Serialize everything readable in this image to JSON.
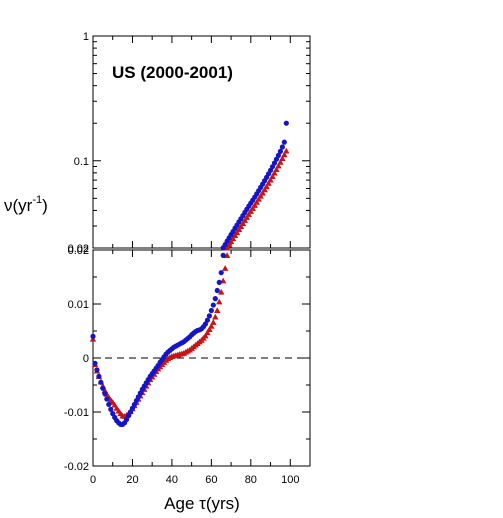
{
  "chart_data": [
    {
      "panel": "top",
      "type": "scatter",
      "title": "US (2000-2001)",
      "ylabel": "ν(yr",
      "ylabel_sup": "-1",
      "ylabel_close": ")",
      "yscale": "log",
      "ylim": [
        0.02,
        1
      ],
      "xlim": [
        0,
        110
      ],
      "ytick_labels": [
        "1",
        "0.1",
        "0.02"
      ],
      "ytick_values": [
        1,
        0.1,
        0.02
      ],
      "series": [
        {
          "marker": "circle",
          "color": "#1515c8",
          "x": [
            66,
            67,
            68,
            69,
            70,
            71,
            72,
            73,
            74,
            75,
            76,
            77,
            78,
            79,
            80,
            81,
            82,
            83,
            84,
            85,
            86,
            87,
            88,
            89,
            90,
            91,
            92,
            93,
            94,
            95,
            96,
            97,
            98
          ],
          "y": [
            0.0201,
            0.0213,
            0.0227,
            0.0241,
            0.0256,
            0.0271,
            0.0288,
            0.0305,
            0.0324,
            0.0343,
            0.0364,
            0.0386,
            0.0409,
            0.0433,
            0.0458,
            0.0484,
            0.0512,
            0.0543,
            0.0576,
            0.0612,
            0.065,
            0.0692,
            0.0737,
            0.0786,
            0.0839,
            0.0897,
            0.096,
            0.103,
            0.1105,
            0.119,
            0.129,
            0.141,
            0.2
          ]
        },
        {
          "marker": "triangle",
          "color": "#c81414",
          "x": [
            68,
            69,
            70,
            71,
            72,
            73,
            74,
            75,
            76,
            77,
            78,
            79,
            80,
            81,
            82,
            83,
            84,
            85,
            86,
            87,
            88,
            89,
            90,
            91,
            92,
            93,
            94,
            95,
            96,
            97,
            98
          ],
          "y": [
            0.02,
            0.0212,
            0.0225,
            0.0238,
            0.0252,
            0.0266,
            0.0282,
            0.0298,
            0.0315,
            0.0333,
            0.0352,
            0.0372,
            0.0394,
            0.0416,
            0.044,
            0.0466,
            0.0493,
            0.0522,
            0.0553,
            0.0586,
            0.0622,
            0.0661,
            0.0703,
            0.0749,
            0.0799,
            0.0853,
            0.0911,
            0.0975,
            0.1045,
            0.112,
            0.12
          ]
        }
      ]
    },
    {
      "panel": "bottom",
      "type": "scatter",
      "xlabel": "Age τ(yrs)",
      "ylim": [
        -0.02,
        0.02
      ],
      "xlim": [
        0,
        110
      ],
      "ytick_labels": [
        "0.02",
        "0.01",
        "0",
        "-0.01",
        "-0.02"
      ],
      "ytick_values": [
        0.02,
        0.01,
        0,
        -0.01,
        -0.02
      ],
      "xtick_labels": [
        "0",
        "20",
        "40",
        "60",
        "80",
        "100"
      ],
      "xtick_values": [
        0,
        20,
        40,
        60,
        80,
        100
      ],
      "reference_line": {
        "y": 0,
        "style": "dashed"
      },
      "series": [
        {
          "marker": "circle",
          "color": "#1515c8",
          "x": [
            0,
            1,
            2,
            3,
            4,
            5,
            6,
            7,
            8,
            9,
            10,
            11,
            12,
            13,
            14,
            15,
            16,
            17,
            18,
            19,
            20,
            21,
            22,
            23,
            24,
            25,
            26,
            27,
            28,
            29,
            30,
            31,
            32,
            33,
            34,
            35,
            36,
            37,
            38,
            39,
            40,
            41,
            42,
            43,
            44,
            45,
            46,
            47,
            48,
            49,
            50,
            51,
            52,
            53,
            54,
            55,
            56,
            57,
            58,
            59,
            60,
            61,
            62,
            63,
            64,
            65,
            66
          ],
          "y": [
            0.004,
            -0.001,
            -0.0022,
            -0.0034,
            -0.0045,
            -0.0056,
            -0.0066,
            -0.0076,
            -0.0086,
            -0.0095,
            -0.0103,
            -0.011,
            -0.0116,
            -0.012,
            -0.0123,
            -0.0123,
            -0.012,
            -0.0114,
            -0.0107,
            -0.01,
            -0.0093,
            -0.0086,
            -0.0079,
            -0.0072,
            -0.0065,
            -0.0058,
            -0.0052,
            -0.0046,
            -0.004,
            -0.0034,
            -0.0029,
            -0.0024,
            -0.0019,
            -0.0014,
            -0.0008,
            -0.0003,
            0.0002,
            0.0007,
            0.0011,
            0.0014,
            0.0017,
            0.002,
            0.0022,
            0.0024,
            0.0026,
            0.0028,
            0.003,
            0.0033,
            0.0036,
            0.0039,
            0.0043,
            0.0046,
            0.0049,
            0.0051,
            0.0052,
            0.0054,
            0.0058,
            0.0063,
            0.007,
            0.0078,
            0.0088,
            0.0098,
            0.011,
            0.0125,
            0.014,
            0.0158,
            0.019
          ]
        },
        {
          "marker": "triangle",
          "color": "#c81414",
          "x": [
            0,
            1,
            2,
            3,
            4,
            5,
            6,
            7,
            8,
            9,
            10,
            11,
            12,
            13,
            14,
            15,
            16,
            17,
            18,
            19,
            20,
            21,
            22,
            23,
            24,
            25,
            26,
            27,
            28,
            29,
            30,
            31,
            32,
            33,
            34,
            35,
            36,
            37,
            38,
            39,
            40,
            41,
            42,
            43,
            44,
            45,
            46,
            47,
            48,
            49,
            50,
            51,
            52,
            53,
            54,
            55,
            56,
            57,
            58,
            59,
            60,
            61,
            62,
            63,
            64,
            65,
            66,
            67,
            68
          ],
          "y": [
            0.0035,
            -0.0012,
            -0.0024,
            -0.0034,
            -0.0044,
            -0.0052,
            -0.006,
            -0.0067,
            -0.0073,
            -0.0078,
            -0.0082,
            -0.0087,
            -0.0093,
            -0.0098,
            -0.0103,
            -0.0107,
            -0.0108,
            -0.0106,
            -0.0103,
            -0.0099,
            -0.0094,
            -0.0088,
            -0.0082,
            -0.0076,
            -0.007,
            -0.0064,
            -0.0058,
            -0.0052,
            -0.0046,
            -0.004,
            -0.0035,
            -0.003,
            -0.0025,
            -0.002,
            -0.0016,
            -0.0012,
            -0.0008,
            -0.0004,
            -0.0001,
            0.0001,
            0.0003,
            0.0004,
            0.0005,
            0.0006,
            0.0007,
            0.0008,
            0.0009,
            0.0011,
            0.0013,
            0.0015,
            0.0018,
            0.0021,
            0.0024,
            0.0027,
            0.003,
            0.0033,
            0.0037,
            0.0041,
            0.0047,
            0.0053,
            0.0059,
            0.0066,
            0.0076,
            0.0088,
            0.0104,
            0.0122,
            0.0143,
            0.0166,
            0.019
          ]
        }
      ]
    }
  ]
}
